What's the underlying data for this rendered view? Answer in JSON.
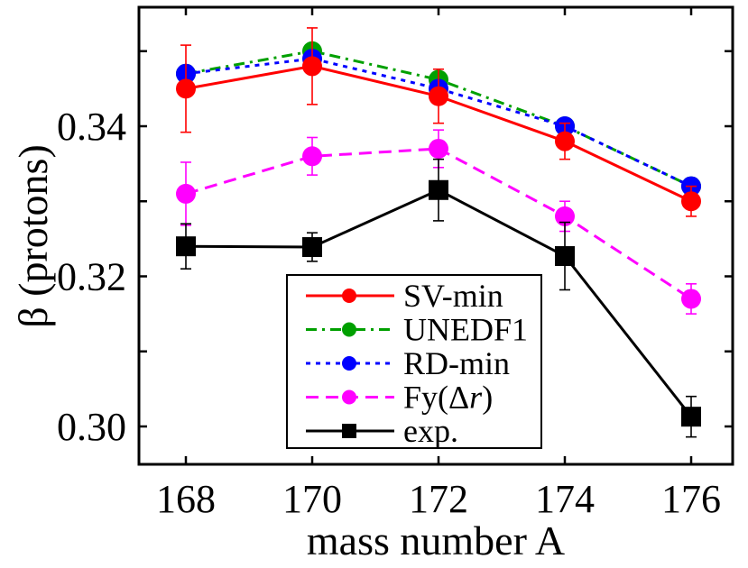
{
  "chart_data": {
    "type": "line",
    "title": "",
    "xlabel": "mass number A",
    "ylabel": "β (protons)",
    "x": [
      168,
      170,
      172,
      174,
      176
    ],
    "xticks": [
      "168",
      "170",
      "172",
      "174",
      "176"
    ],
    "yticks": [
      "0.30",
      "0.32",
      "0.34"
    ],
    "xlim": [
      166.9,
      176.6
    ],
    "ylim": [
      0.295,
      0.3555
    ],
    "grid": false,
    "legend_position": "lower center (inside plot)",
    "series": [
      {
        "name": "SV-min",
        "color": "#ff0000",
        "linestyle": "solid",
        "marker": "circle",
        "values": [
          0.345,
          0.348,
          0.344,
          0.338,
          0.33
        ],
        "errors": [
          0.0058,
          0.0051,
          0.0036,
          0.0024,
          0.002
        ]
      },
      {
        "name": "UNEDF1",
        "color": "#00a000",
        "linestyle": "dashdot",
        "marker": "circle",
        "values": [
          0.347,
          0.35,
          0.3462,
          0.34,
          0.332
        ],
        "errors": null
      },
      {
        "name": "RD-min",
        "color": "#0000ff",
        "linestyle": "dotted",
        "marker": "circle",
        "values": [
          0.347,
          0.349,
          0.345,
          0.34,
          0.332
        ],
        "errors": null
      },
      {
        "name": "Fy(Δr)",
        "color": "#ff00ff",
        "linestyle": "dashed",
        "marker": "circle",
        "values": [
          0.331,
          0.336,
          0.337,
          0.328,
          0.317
        ],
        "errors": [
          0.0042,
          0.0025,
          0.0025,
          0.002,
          0.002
        ]
      },
      {
        "name": "exp.",
        "color": "#000000",
        "linestyle": "solid",
        "marker": "square",
        "values": [
          0.324,
          0.3239,
          0.3315,
          0.3227,
          0.3013
        ],
        "errors": [
          0.003,
          0.0019,
          0.0041,
          0.0045,
          0.0027
        ]
      }
    ]
  },
  "legend": {
    "items": [
      {
        "label_main": "SV-min",
        "label_italic": "",
        "label_tail": ""
      },
      {
        "label_main": "UNEDF1",
        "label_italic": "",
        "label_tail": ""
      },
      {
        "label_main": "RD-min",
        "label_italic": "",
        "label_tail": ""
      },
      {
        "label_main": "Fy(Δ",
        "label_italic": "r",
        "label_tail": ")"
      },
      {
        "label_main": "exp.",
        "label_italic": "",
        "label_tail": ""
      }
    ]
  }
}
